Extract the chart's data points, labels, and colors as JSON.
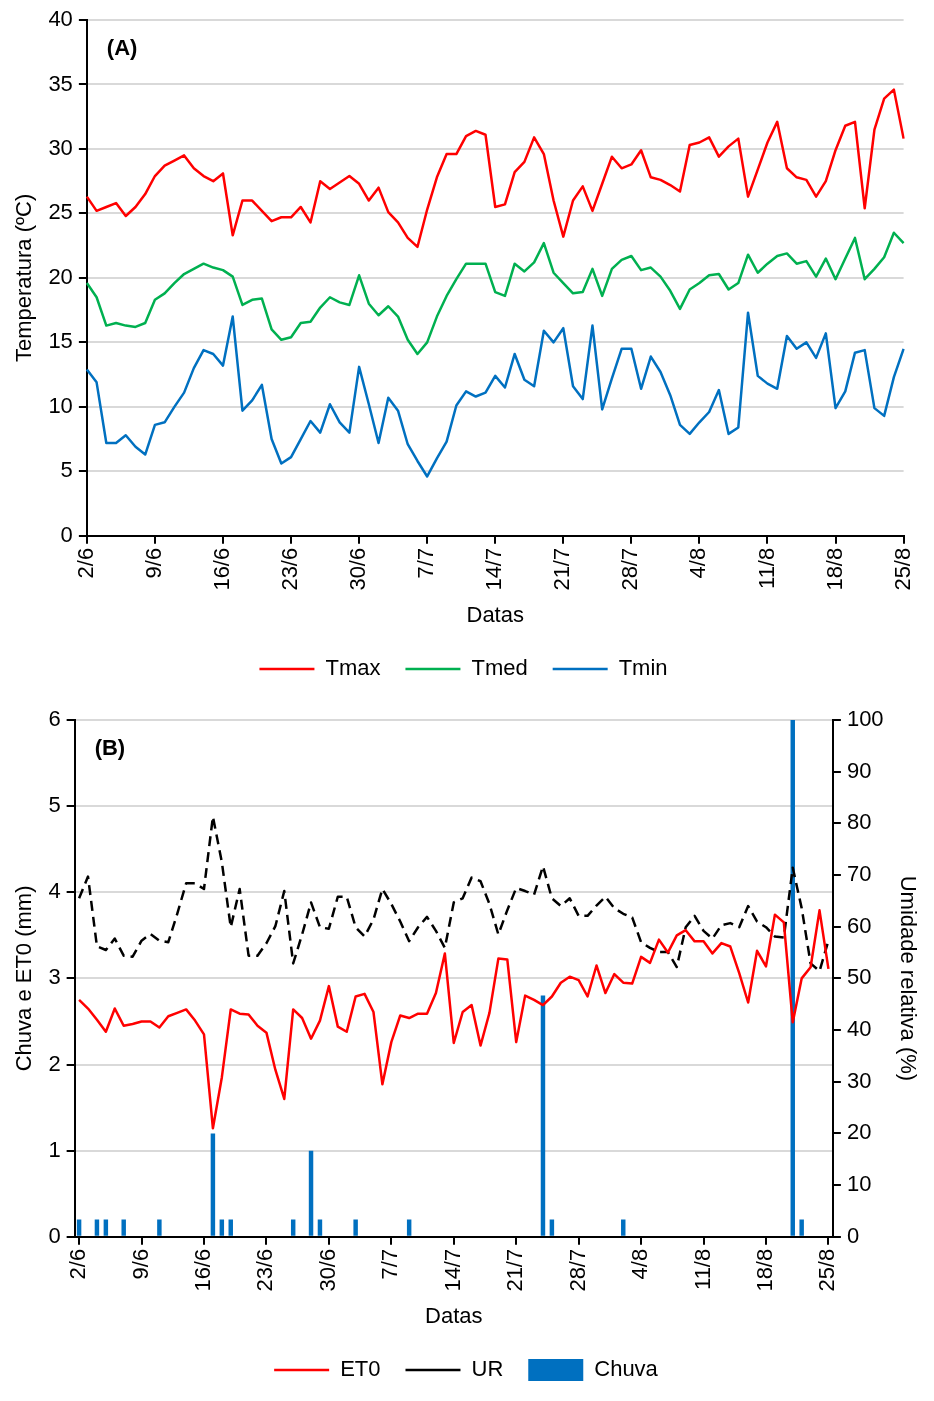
{
  "chart_data": [
    {
      "type": "line",
      "title": "(A)",
      "xlabel": "Datas",
      "ylabel": "Temperatura (ºC)",
      "categories": [
        "2/6",
        null,
        null,
        null,
        null,
        null,
        null,
        "9/6",
        null,
        null,
        null,
        null,
        null,
        null,
        "16/6",
        null,
        null,
        null,
        null,
        null,
        null,
        "23/6",
        null,
        null,
        null,
        null,
        null,
        null,
        "30/6",
        null,
        null,
        null,
        null,
        null,
        null,
        "7/7",
        null,
        null,
        null,
        null,
        null,
        null,
        "14/7",
        null,
        null,
        null,
        null,
        null,
        null,
        "21/7",
        null,
        null,
        null,
        null,
        null,
        null,
        "28/7",
        null,
        null,
        null,
        null,
        null,
        null,
        "4/8",
        null,
        null,
        null,
        null,
        null,
        null,
        "11/8",
        null,
        null,
        null,
        null,
        null,
        null,
        "18/8",
        null,
        null,
        null,
        null,
        null,
        null,
        "25/8"
      ],
      "series": [
        {
          "name": "Tmax",
          "color": "#ff0000",
          "values": [
            26.3,
            25.2,
            25.5,
            25.8,
            24.8,
            25.5,
            26.5,
            27.9,
            28.7,
            29.1,
            29.5,
            28.5,
            27.9,
            27.5,
            28.1,
            23.3,
            26.0,
            26.0,
            25.2,
            24.4,
            24.7,
            24.7,
            25.5,
            24.3,
            27.5,
            26.9,
            27.4,
            27.9,
            27.3,
            26.0,
            27.0,
            25.1,
            24.3,
            23.1,
            22.4,
            25.3,
            27.8,
            29.6,
            29.6,
            31.0,
            31.4,
            31.1,
            25.5,
            25.7,
            28.2,
            29.0,
            30.9,
            29.6,
            26.0,
            23.2,
            26.0,
            27.1,
            25.2,
            27.3,
            29.4,
            28.5,
            28.8,
            29.9,
            27.8,
            27.6,
            27.2,
            26.7,
            30.3,
            30.5,
            30.9,
            29.4,
            30.2,
            30.8,
            26.3,
            28.4,
            30.5,
            32.1,
            28.5,
            27.8,
            27.6,
            26.3,
            27.5,
            29.9,
            31.8,
            32.1,
            25.4,
            31.5,
            33.9,
            34.6,
            30.8
          ]
        },
        {
          "name": "Tmed",
          "color": "#00b050",
          "values": [
            19.6,
            18.5,
            16.3,
            16.5,
            16.3,
            16.2,
            16.5,
            18.3,
            18.8,
            19.6,
            20.3,
            20.7,
            21.1,
            20.8,
            20.6,
            20.1,
            17.9,
            18.3,
            18.4,
            16.0,
            15.2,
            15.4,
            16.5,
            16.6,
            17.7,
            18.5,
            18.1,
            17.9,
            20.2,
            18.0,
            17.1,
            17.8,
            17.0,
            15.2,
            14.1,
            15.0,
            17.0,
            18.6,
            19.9,
            21.1,
            21.1,
            21.1,
            18.9,
            18.6,
            21.1,
            20.5,
            21.2,
            22.7,
            20.4,
            19.6,
            18.8,
            18.9,
            20.7,
            18.6,
            20.7,
            21.4,
            21.7,
            20.6,
            20.8,
            20.1,
            19.0,
            17.6,
            19.1,
            19.6,
            20.2,
            20.3,
            19.1,
            19.6,
            21.8,
            20.4,
            21.1,
            21.7,
            21.9,
            21.1,
            21.3,
            20.1,
            21.5,
            19.9,
            21.5,
            23.1,
            19.9,
            20.7,
            21.6,
            23.5,
            22.7
          ]
        },
        {
          "name": "Tmin",
          "color": "#0070c0",
          "values": [
            12.9,
            11.9,
            7.2,
            7.2,
            7.8,
            6.9,
            6.3,
            8.6,
            8.8,
            10.0,
            11.1,
            13.0,
            14.4,
            14.1,
            13.2,
            17.0,
            9.7,
            10.5,
            11.7,
            7.5,
            5.6,
            6.1,
            7.5,
            8.9,
            8.0,
            10.2,
            8.8,
            8.0,
            13.1,
            10.2,
            7.2,
            10.7,
            9.7,
            7.1,
            5.8,
            4.6,
            6.0,
            7.3,
            10.1,
            11.2,
            10.8,
            11.1,
            12.4,
            11.5,
            14.1,
            12.1,
            11.6,
            15.9,
            15.0,
            16.1,
            11.6,
            10.6,
            16.3,
            9.8,
            12.2,
            14.5,
            14.5,
            11.4,
            13.9,
            12.7,
            10.9,
            8.6,
            7.9,
            8.8,
            9.6,
            11.3,
            7.9,
            8.4,
            17.3,
            12.4,
            11.8,
            11.4,
            15.5,
            14.5,
            15.0,
            13.8,
            15.7,
            9.9,
            11.2,
            14.2,
            14.4,
            9.9,
            9.3,
            12.3,
            14.5
          ]
        }
      ],
      "ylim": [
        0,
        40
      ],
      "yticks": [
        0,
        5,
        10,
        15,
        20,
        25,
        30,
        35,
        40
      ],
      "grid": "y",
      "legend": "bottom",
      "marker": "none"
    },
    {
      "type": "line",
      "title": "(B)",
      "xlabel": "Datas",
      "ylabel": "Chuva e ET0 (mm)",
      "y2label": "Umidade relativa (%)",
      "categories": [
        "2/6",
        null,
        null,
        null,
        null,
        null,
        null,
        "9/6",
        null,
        null,
        null,
        null,
        null,
        null,
        "16/6",
        null,
        null,
        null,
        null,
        null,
        null,
        "23/6",
        null,
        null,
        null,
        null,
        null,
        null,
        "30/6",
        null,
        null,
        null,
        null,
        null,
        null,
        "7/7",
        null,
        null,
        null,
        null,
        null,
        null,
        "14/7",
        null,
        null,
        null,
        null,
        null,
        null,
        "21/7",
        null,
        null,
        null,
        null,
        null,
        null,
        "28/7",
        null,
        null,
        null,
        null,
        null,
        null,
        "4/8",
        null,
        null,
        null,
        null,
        null,
        null,
        "11/8",
        null,
        null,
        null,
        null,
        null,
        null,
        "18/8",
        null,
        null,
        null,
        null,
        null,
        null,
        "25/8"
      ],
      "series": [
        {
          "name": "Chuva",
          "type": "bar",
          "color": "#0070c0",
          "values": [
            0.2,
            0,
            0.2,
            0.2,
            0,
            0.2,
            0,
            0,
            0,
            0.2,
            0,
            0,
            0,
            0,
            0,
            1.2,
            0.2,
            0.2,
            0,
            0,
            0,
            0,
            0,
            0,
            0.2,
            0,
            1.0,
            0.2,
            0,
            0,
            0,
            0.2,
            0,
            0,
            0,
            0,
            0,
            0.2,
            0,
            0,
            0,
            0,
            0,
            0,
            0,
            0,
            0,
            0,
            0,
            0,
            0,
            0,
            2.8,
            0.2,
            0,
            0,
            0,
            0,
            0,
            0,
            0,
            0.2,
            0,
            0,
            0,
            0,
            0,
            0,
            0,
            0,
            0,
            0,
            0,
            0,
            0,
            0,
            0,
            0,
            0,
            0,
            6,
            0.2,
            0,
            0,
            0
          ]
        },
        {
          "name": "ET0",
          "color": "#ff0000",
          "values": [
            2.75,
            2.65,
            2.52,
            2.38,
            2.65,
            2.45,
            2.47,
            2.5,
            2.5,
            2.43,
            2.56,
            2.6,
            2.64,
            2.51,
            2.35,
            1.26,
            1.85,
            2.64,
            2.59,
            2.58,
            2.45,
            2.37,
            1.94,
            1.6,
            2.64,
            2.54,
            2.3,
            2.51,
            2.91,
            2.44,
            2.38,
            2.79,
            2.82,
            2.61,
            1.77,
            2.26,
            2.57,
            2.54,
            2.59,
            2.59,
            2.83,
            3.29,
            2.25,
            2.61,
            2.69,
            2.22,
            2.6,
            3.23,
            3.22,
            2.26,
            2.8,
            2.75,
            2.69,
            2.79,
            2.95,
            3.02,
            2.98,
            2.79,
            3.15,
            2.83,
            3.05,
            2.95,
            2.94,
            3.25,
            3.18,
            3.45,
            3.3,
            3.5,
            3.56,
            3.43,
            3.43,
            3.29,
            3.41,
            3.37,
            3.06,
            2.72,
            3.32,
            3.14,
            3.74,
            3.65,
            2.49,
            3.0,
            3.13,
            3.79,
            3.11
          ]
        },
        {
          "name": "UR",
          "color": "#000000",
          "axis": "y2",
          "line_style": "dashed",
          "values": [
            65.5,
            69.7,
            56.2,
            55.5,
            57.7,
            54.4,
            54.2,
            57.3,
            58.6,
            57.3,
            57.0,
            62.5,
            68.4,
            68.4,
            67.3,
            81.3,
            72.5,
            59.9,
            67.3,
            54.4,
            54.4,
            56.8,
            60.1,
            66.9,
            52.9,
            58.5,
            64.7,
            59.9,
            59.6,
            65.8,
            65.8,
            59.9,
            58.1,
            61.4,
            67.3,
            64.4,
            61.0,
            57.2,
            59.9,
            61.9,
            59.2,
            55.9,
            64.7,
            65.5,
            69.5,
            68.8,
            64.4,
            58.5,
            63.2,
            67.5,
            66.9,
            66.2,
            71.7,
            65.5,
            64.0,
            65.5,
            62.1,
            62.1,
            64.1,
            65.8,
            63.6,
            62.5,
            61.8,
            57.0,
            55.9,
            55.1,
            55.1,
            52.2,
            59.9,
            62.1,
            59.2,
            57.7,
            60.3,
            60.7,
            59.9,
            64.0,
            61.0,
            59.9,
            58.1,
            57.9,
            71.4,
            63.6,
            52.9,
            51.4,
            57.3
          ]
        }
      ],
      "ylim": [
        0,
        6
      ],
      "yticks": [
        0,
        1,
        2,
        3,
        4,
        5,
        6
      ],
      "y2lim": [
        0,
        100
      ],
      "y2ticks": [
        0,
        10,
        20,
        30,
        40,
        50,
        60,
        70,
        80,
        90,
        100
      ],
      "grid": "y",
      "legend": "bottom",
      "marker": "none"
    }
  ]
}
